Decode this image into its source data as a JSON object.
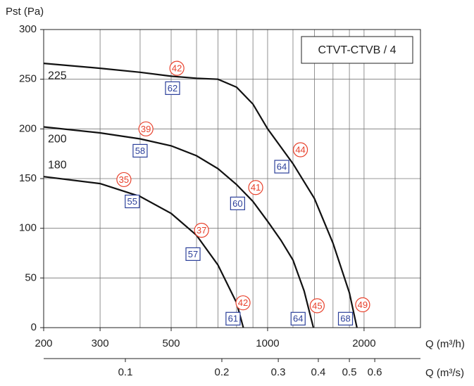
{
  "chart_data": {
    "type": "line",
    "title": "CTVT-CTVB / 4",
    "y_label": "Pst (Pa)",
    "x_label": "Q (m³/h)",
    "x2_label": "Q (m³/s)",
    "xscale": "log",
    "xlim": [
      200,
      3000
    ],
    "xticks": [
      200,
      300,
      500,
      1000,
      2000
    ],
    "x_minor_ticks": [
      400,
      600,
      700,
      800,
      900,
      1200,
      1400,
      1600,
      1800,
      2500
    ],
    "x2lim": [
      0.0556,
      0.8333
    ],
    "x2ticks": [
      0.1,
      0.2,
      0.3,
      0.4,
      0.5,
      0.6
    ],
    "ylim": [
      0,
      300
    ],
    "yticks": [
      0,
      50,
      100,
      150,
      200,
      250,
      300
    ],
    "grid": true,
    "color": "#111111",
    "series": [
      {
        "name": "225",
        "x": [
          200,
          300,
          400,
          500,
          600,
          700,
          800,
          900,
          1000,
          1200,
          1400,
          1600,
          1800,
          1900
        ],
        "values": [
          266,
          261,
          257,
          253,
          251,
          250,
          242,
          225,
          200,
          165,
          130,
          85,
          35,
          0
        ]
      },
      {
        "name": "200",
        "x": [
          200,
          300,
          400,
          500,
          600,
          700,
          800,
          900,
          1000,
          1100,
          1200,
          1300,
          1390
        ],
        "values": [
          202,
          196,
          190,
          183,
          173,
          160,
          144,
          127,
          107,
          88,
          68,
          37,
          0
        ]
      },
      {
        "name": "180",
        "x": [
          200,
          300,
          400,
          500,
          600,
          700,
          800,
          840
        ],
        "values": [
          152,
          145,
          132,
          115,
          93,
          63,
          25,
          0
        ]
      }
    ],
    "annotations": [
      {
        "text": "42",
        "x": 521,
        "y": 261,
        "style": "circle"
      },
      {
        "text": "62",
        "x": 505,
        "y": 241,
        "style": "box"
      },
      {
        "text": "39",
        "x": 417,
        "y": 200,
        "style": "circle"
      },
      {
        "text": "58",
        "x": 400,
        "y": 178,
        "style": "box"
      },
      {
        "text": "44",
        "x": 1266,
        "y": 179,
        "style": "circle"
      },
      {
        "text": "64",
        "x": 1107,
        "y": 162,
        "style": "box"
      },
      {
        "text": "35",
        "x": 356,
        "y": 149,
        "style": "circle"
      },
      {
        "text": "55",
        "x": 378,
        "y": 127,
        "style": "box"
      },
      {
        "text": "41",
        "x": 918,
        "y": 141,
        "style": "circle"
      },
      {
        "text": "60",
        "x": 806,
        "y": 125,
        "style": "box"
      },
      {
        "text": "37",
        "x": 622,
        "y": 98,
        "style": "circle"
      },
      {
        "text": "57",
        "x": 585,
        "y": 74,
        "style": "box"
      },
      {
        "text": "42",
        "x": 838,
        "y": 25,
        "style": "circle"
      },
      {
        "text": "61",
        "x": 780,
        "y": 9,
        "style": "box"
      },
      {
        "text": "45",
        "x": 1428,
        "y": 22,
        "style": "circle"
      },
      {
        "text": "64",
        "x": 1245,
        "y": 9,
        "style": "box"
      },
      {
        "text": "49",
        "x": 1980,
        "y": 23,
        "style": "circle"
      },
      {
        "text": "68",
        "x": 1750,
        "y": 9,
        "style": "box"
      }
    ]
  }
}
